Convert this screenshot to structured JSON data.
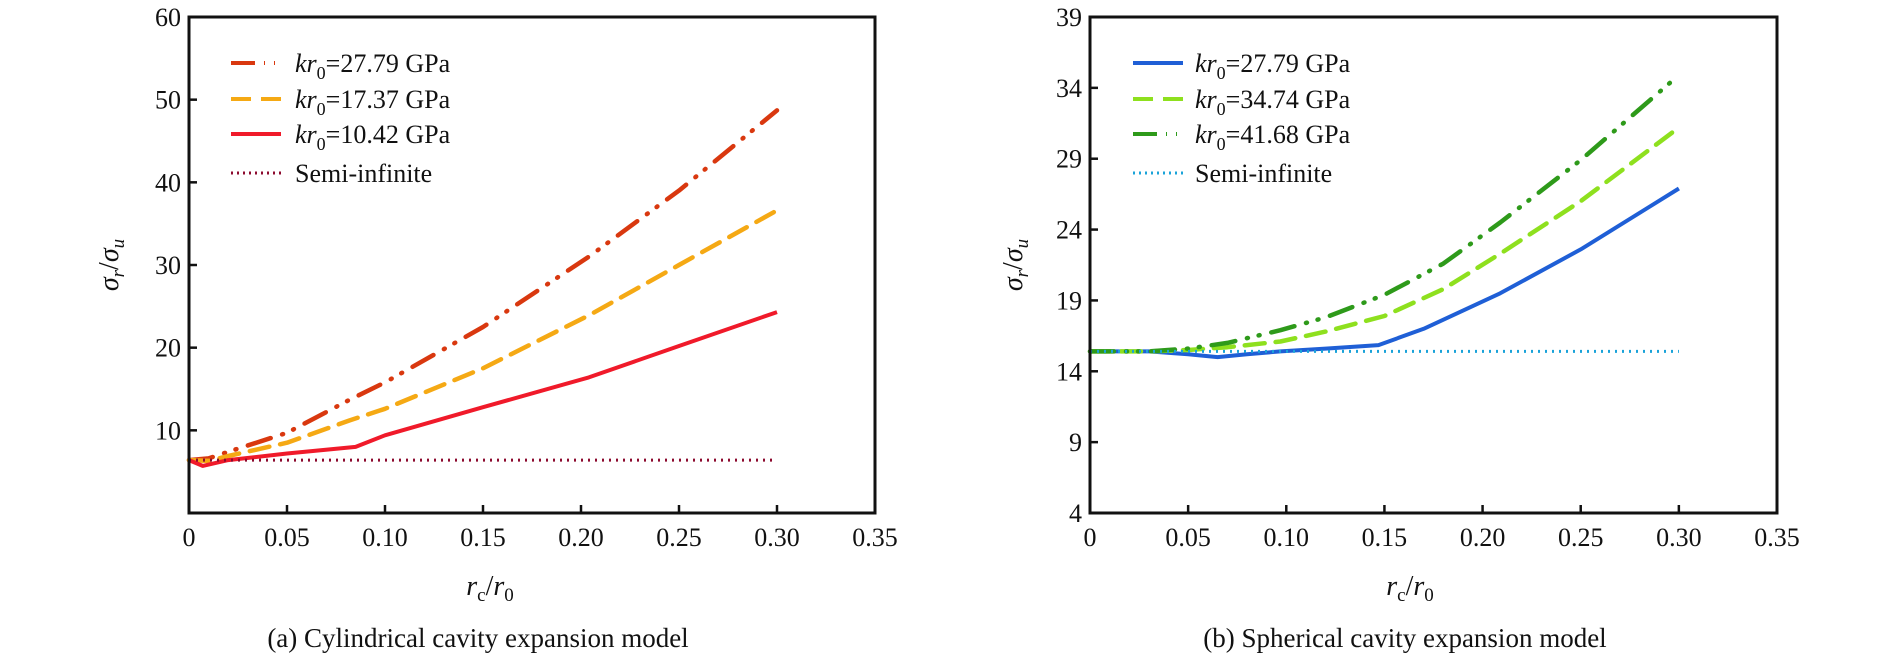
{
  "chart_data": [
    {
      "type": "line",
      "title": "",
      "caption": "(a) Cylindrical cavity expansion model",
      "xlabel": {
        "main": "r",
        "sub1": "c",
        "sep": "/",
        "main2": "r",
        "sub2": "0"
      },
      "ylabel": {
        "main": "σ",
        "sub1": "r",
        "sep": "/",
        "main2": "σ",
        "sub2": "u"
      },
      "xlim": [
        0,
        0.35
      ],
      "ylim": [
        0,
        60
      ],
      "xticks": [
        0,
        0.05,
        0.1,
        0.15,
        0.2,
        0.25,
        0.3,
        0.35
      ],
      "xtick_labels": [
        "0",
        "0.05",
        "0.10",
        "0.15",
        "0.20",
        "0.25",
        "0.30",
        "0.35"
      ],
      "yticks": [
        10,
        20,
        30,
        40,
        50,
        60
      ],
      "ytick_labels": [
        "10",
        "20",
        "30",
        "40",
        "50",
        "60"
      ],
      "grid": false,
      "legend_position": "top-left",
      "series": [
        {
          "name": "kr0=27.79 GPa",
          "label_k": "kr",
          "label_sub": "0",
          "label_rest": "=27.79 GPa",
          "color": "#d9380f",
          "style": "dashdotdot",
          "x": [
            0,
            0.01,
            0.02,
            0.05,
            0.082,
            0.1,
            0.15,
            0.204,
            0.25,
            0.3
          ],
          "y": [
            6.4,
            6.6,
            7.4,
            9.7,
            13.7,
            15.8,
            22.5,
            31.0,
            39.0,
            48.7
          ]
        },
        {
          "name": "kr0=17.37 GPa",
          "label_k": "kr",
          "label_sub": "0",
          "label_rest": "=17.37 GPa",
          "color": "#f5a914",
          "style": "dashed",
          "x": [
            0,
            0.01,
            0.02,
            0.05,
            0.082,
            0.1,
            0.15,
            0.204,
            0.25,
            0.3
          ],
          "y": [
            6.4,
            6.3,
            6.9,
            8.5,
            11.2,
            12.6,
            17.5,
            23.9,
            30.0,
            36.6
          ]
        },
        {
          "name": "kr0=10.42 GPa",
          "label_k": "kr",
          "label_sub": "0",
          "label_rest": "=10.42 GPa",
          "color": "#f01a2a",
          "style": "solid",
          "x": [
            0,
            0.007,
            0.02,
            0.05,
            0.085,
            0.1,
            0.15,
            0.204,
            0.25,
            0.3
          ],
          "y": [
            6.4,
            5.7,
            6.4,
            7.2,
            8.0,
            9.4,
            12.8,
            16.4,
            20.2,
            24.3
          ]
        },
        {
          "name": "Semi-infinite",
          "label_k": "",
          "label_sub": "",
          "label_rest": "Semi-infinite",
          "color": "#8c0a2e",
          "style": "dotted",
          "x": [
            0,
            0.3
          ],
          "y": [
            6.4,
            6.4
          ]
        }
      ]
    },
    {
      "type": "line",
      "title": "",
      "caption": "(b) Spherical cavity expansion model",
      "xlabel": {
        "main": "r",
        "sub1": "c",
        "sep": "/",
        "main2": "r",
        "sub2": "0"
      },
      "ylabel": {
        "main": "σ",
        "sub1": "r",
        "sep": "/",
        "main2": "σ",
        "sub2": "u"
      },
      "xlim": [
        0,
        0.35
      ],
      "ylim": [
        4,
        39
      ],
      "xticks": [
        0,
        0.05,
        0.1,
        0.15,
        0.2,
        0.25,
        0.3,
        0.35
      ],
      "xtick_labels": [
        "0",
        "0.05",
        "0.10",
        "0.15",
        "0.20",
        "0.25",
        "0.30",
        "0.35"
      ],
      "yticks": [
        4,
        9,
        14,
        19,
        24,
        29,
        34,
        39
      ],
      "ytick_labels": [
        "4",
        "9",
        "14",
        "19",
        "24",
        "29",
        "34",
        "39"
      ],
      "grid": false,
      "legend_position": "top-left",
      "series": [
        {
          "name": "kr0=27.79 GPa",
          "label_k": "kr",
          "label_sub": "0",
          "label_rest": "=27.79 GPa",
          "color": "#1f5fd6",
          "style": "solid",
          "x": [
            0,
            0.03,
            0.05,
            0.065,
            0.08,
            0.097,
            0.12,
            0.147,
            0.17,
            0.209,
            0.25,
            0.3
          ],
          "y": [
            15.4,
            15.4,
            15.2,
            15.0,
            15.2,
            15.4,
            15.6,
            15.85,
            17.0,
            19.5,
            22.6,
            26.9
          ]
        },
        {
          "name": "kr0=34.74 GPa",
          "label_k": "kr",
          "label_sub": "0",
          "label_rest": "=34.74 GPa",
          "color": "#8ee01e",
          "style": "dashed",
          "x": [
            0,
            0.03,
            0.05,
            0.07,
            0.097,
            0.12,
            0.15,
            0.18,
            0.209,
            0.25,
            0.3
          ],
          "y": [
            15.4,
            15.4,
            15.5,
            15.7,
            16.1,
            16.8,
            17.9,
            19.8,
            22.3,
            26.0,
            31.2
          ]
        },
        {
          "name": "kr0=41.68 GPa",
          "label_k": "kr",
          "label_sub": "0",
          "label_rest": "=41.68 GPa",
          "color": "#2e9a1a",
          "style": "dashdotdot",
          "x": [
            0,
            0.03,
            0.05,
            0.07,
            0.097,
            0.12,
            0.15,
            0.18,
            0.209,
            0.25,
            0.3
          ],
          "y": [
            15.4,
            15.4,
            15.6,
            16.0,
            16.9,
            17.8,
            19.4,
            21.6,
            24.5,
            28.9,
            34.9
          ]
        },
        {
          "name": "Semi-infinite",
          "label_k": "",
          "label_sub": "",
          "label_rest": "Semi-infinite",
          "color": "#1aa3d9",
          "style": "dotted",
          "x": [
            0,
            0.3
          ],
          "y": [
            15.4,
            15.4
          ]
        }
      ]
    }
  ]
}
